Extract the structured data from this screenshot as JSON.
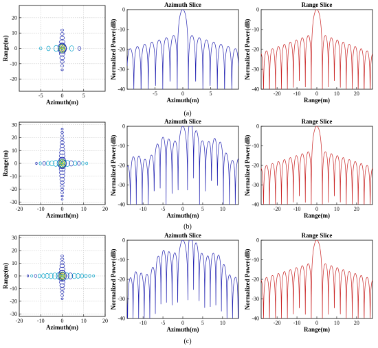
{
  "captions": [
    "(a)",
    "(b)",
    "(c)"
  ],
  "chart_data": [
    {
      "id": "a-contour",
      "type": "heatmap",
      "xlabel": "Azimuth(m)",
      "ylabel": "Range(m)",
      "xlim": [
        -10,
        10
      ],
      "ylim": [
        -28,
        28
      ],
      "xticks": [
        -5,
        0,
        5
      ],
      "yticks": [
        -20,
        -10,
        0,
        10,
        20
      ],
      "grid": true,
      "features": {
        "cross_x_extent": 5,
        "cross_y_extent": 14
      }
    },
    {
      "id": "a-azimuth",
      "type": "line",
      "title": "Azimuth Slice",
      "xlabel": "Azimuth(m)",
      "ylabel": "Normalized Power(dB)",
      "xlim": [
        -10,
        10
      ],
      "ylim": [
        -40,
        0
      ],
      "xticks": [
        -5,
        0,
        5
      ],
      "yticks": [
        -40,
        -30,
        -20,
        -10,
        0
      ],
      "color": "#1f1fb0",
      "lobes": {
        "mainlobe_half_width": 1.0,
        "lobe_period": 1.3,
        "first_sidelobe_db": -13,
        "sidelobe_decay_db": 1.1,
        "floor_db": -33,
        "null_db": -42
      }
    },
    {
      "id": "a-range",
      "type": "line",
      "title": "Range Slice",
      "xlabel": "Range(m)",
      "ylabel": "Normalized Power(dB)",
      "xlim": [
        -28,
        28
      ],
      "ylim": [
        -40,
        0
      ],
      "xticks": [
        -20,
        -10,
        0,
        10,
        20
      ],
      "yticks": [
        -40,
        -30,
        -20,
        -10,
        0
      ],
      "color": "#c81e1e",
      "lobes": {
        "mainlobe_half_width": 2.8,
        "lobe_period": 3.0,
        "first_sidelobe_db": -13,
        "sidelobe_decay_db": 1.1,
        "floor_db": -31,
        "null_db": -42
      }
    },
    {
      "id": "b-contour",
      "type": "heatmap",
      "xlabel": "Azimuth(m)",
      "ylabel": "Range(m)",
      "xlim": [
        -20,
        20
      ],
      "ylim": [
        -32,
        32
      ],
      "xticks": [
        -20,
        -10,
        0,
        10,
        20
      ],
      "yticks": [
        -30,
        -20,
        -10,
        0,
        10,
        20,
        30
      ],
      "grid": true,
      "features": {
        "cross_x_extent": 12,
        "cross_y_extent": 28
      }
    },
    {
      "id": "b-azimuth",
      "type": "line",
      "title": "Azimuth Slice",
      "xlabel": "Azimuth(m)",
      "ylabel": "Normalized Power(dB)",
      "xlim": [
        -14,
        14
      ],
      "ylim": [
        -40,
        0
      ],
      "xticks": [
        -10,
        -5,
        0,
        5,
        10
      ],
      "yticks": [
        -40,
        -30,
        -20,
        -10,
        0
      ],
      "color": "#1f1fb0",
      "lobes": {
        "mainlobe_half_width": 1.2,
        "lobe_period": 1.5,
        "first_sidelobe_db": -3,
        "sidelobe_decay_db": 2.0,
        "floor_db": -34,
        "null_db": -42,
        "asymmetric": true
      }
    },
    {
      "id": "b-range",
      "type": "line",
      "title": "Range Slice",
      "xlabel": "Range(m)",
      "ylabel": "Normalized Power(dB)",
      "xlim": [
        -28,
        28
      ],
      "ylim": [
        -40,
        0
      ],
      "xticks": [
        -20,
        -10,
        0,
        10,
        20
      ],
      "yticks": [
        -40,
        -30,
        -20,
        -10,
        0
      ],
      "color": "#c81e1e",
      "lobes": {
        "mainlobe_half_width": 2.8,
        "lobe_period": 3.0,
        "first_sidelobe_db": -13,
        "sidelobe_decay_db": 1.0,
        "floor_db": -35,
        "null_db": -42
      }
    },
    {
      "id": "c-contour",
      "type": "heatmap",
      "xlabel": "Azimuth(m)",
      "ylabel": "Range(m)",
      "xlim": [
        -20,
        20
      ],
      "ylim": [
        -32,
        32
      ],
      "xticks": [
        -20,
        -10,
        0,
        10,
        20
      ],
      "yticks": [
        -30,
        -20,
        -10,
        0,
        10,
        20,
        30
      ],
      "grid": true,
      "features": {
        "cross_x_extent": 16,
        "cross_y_extent": 18
      }
    },
    {
      "id": "c-azimuth",
      "type": "line",
      "title": "Azimuth Slice",
      "xlabel": "Azimuth(m)",
      "ylabel": "Normalized Power(dB)",
      "xlim": [
        -14,
        14
      ],
      "ylim": [
        -40,
        0
      ],
      "xticks": [
        -10,
        -5,
        0,
        5,
        10
      ],
      "yticks": [
        -40,
        -30,
        -20,
        -10,
        0
      ],
      "color": "#1f1fb0",
      "lobes": {
        "mainlobe_half_width": 1.3,
        "lobe_period": 1.4,
        "first_sidelobe_db": -2,
        "sidelobe_decay_db": 2.2,
        "floor_db": -36,
        "null_db": -42,
        "asymmetric": true
      }
    },
    {
      "id": "c-range",
      "type": "line",
      "title": "Range Slice",
      "xlabel": "Range(m)",
      "ylabel": "Normalized Power(dB)",
      "xlim": [
        -28,
        28
      ],
      "ylim": [
        -40,
        0
      ],
      "xticks": [
        -20,
        -10,
        0,
        10,
        20
      ],
      "yticks": [
        -40,
        -30,
        -20,
        -10,
        0
      ],
      "color": "#c81e1e",
      "lobes": {
        "mainlobe_half_width": 2.8,
        "lobe_period": 3.0,
        "first_sidelobe_db": -12,
        "sidelobe_decay_db": 1.0,
        "floor_db": -34,
        "null_db": -42
      }
    }
  ]
}
